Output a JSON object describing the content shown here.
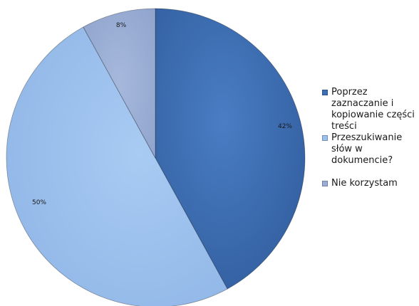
{
  "chart_data": {
    "type": "pie",
    "title": "",
    "categories": [
      "Poprzez zaznaczanie i kopiowanie części treści",
      "Przeszukiwanie słów w dokumencie?",
      "Nie korzystam"
    ],
    "values": [
      42,
      50,
      8
    ],
    "value_labels": [
      "42%",
      "50%",
      "8%"
    ],
    "colors": [
      "#3f6fb5",
      "#9dc1ee",
      "#9aaed3"
    ],
    "legend_position": "right"
  }
}
